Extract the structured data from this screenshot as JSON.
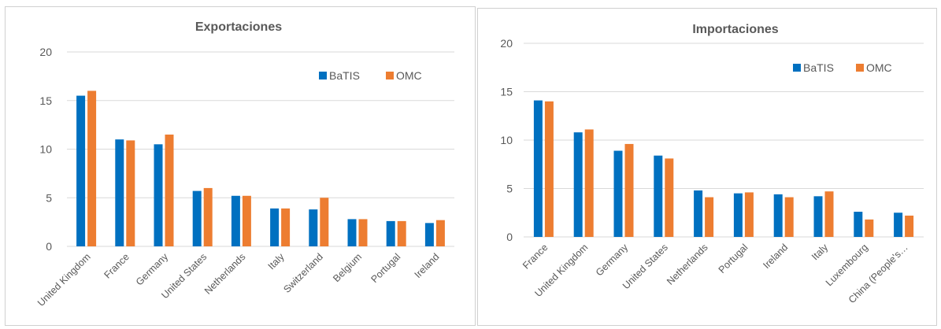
{
  "colors": {
    "batis": "#0070c0",
    "omc": "#ed7d31"
  },
  "chart_data": [
    {
      "type": "bar",
      "title": "Exportaciones",
      "categories": [
        "United Kingdom",
        "France",
        "Germany",
        "United States",
        "Netherlands",
        "Italy",
        "Switzerland",
        "Belgium",
        "Portugal",
        "Ireland"
      ],
      "series": [
        {
          "name": "BaTIS",
          "values": [
            15.5,
            11.0,
            10.5,
            5.7,
            5.2,
            3.9,
            3.8,
            2.8,
            2.6,
            2.4
          ]
        },
        {
          "name": "OMC",
          "values": [
            16.0,
            10.9,
            11.5,
            6.0,
            5.2,
            3.9,
            5.0,
            2.8,
            2.6,
            2.7
          ]
        }
      ],
      "yticks": [
        0,
        5,
        10,
        15,
        20
      ],
      "ylim": [
        0,
        20
      ],
      "grid": true,
      "legend": "top-right"
    },
    {
      "type": "bar",
      "title": "Importaciones",
      "categories": [
        "France",
        "United Kingdom",
        "Germany",
        "United States",
        "Netherlands",
        "Portugal",
        "Ireland",
        "Italy",
        "Luxembourg",
        "China (People's…"
      ],
      "series": [
        {
          "name": "BaTIS",
          "values": [
            14.1,
            10.8,
            8.9,
            8.4,
            4.8,
            4.5,
            4.4,
            4.2,
            2.6,
            2.5
          ]
        },
        {
          "name": "OMC",
          "values": [
            14.0,
            11.1,
            9.6,
            8.1,
            4.1,
            4.6,
            4.1,
            4.7,
            1.8,
            2.2
          ]
        }
      ],
      "yticks": [
        0,
        5,
        10,
        15,
        20
      ],
      "ylim": [
        0,
        20
      ],
      "grid": true,
      "legend": "top-right"
    }
  ]
}
